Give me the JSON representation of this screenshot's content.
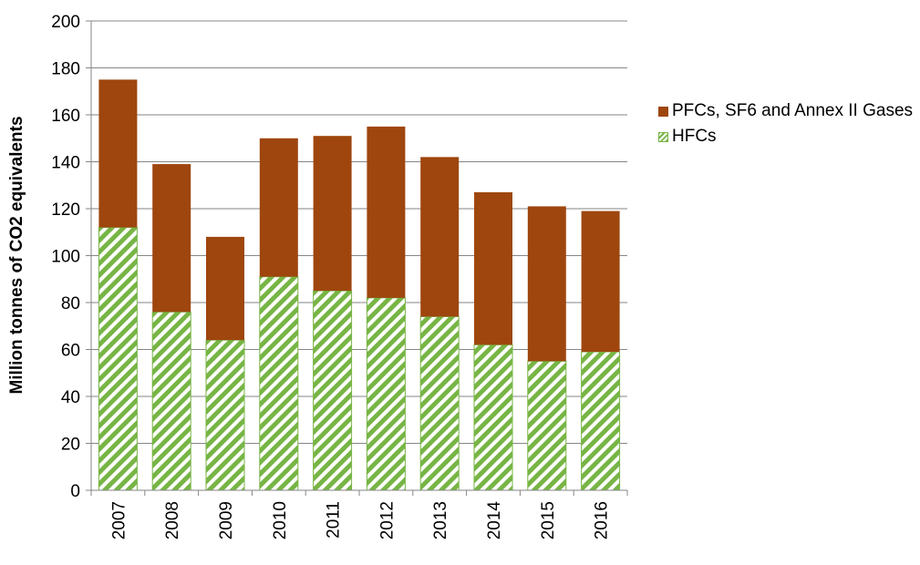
{
  "chart_data": {
    "type": "stacked_bar",
    "y_label": "Million tonnes of CO2 equivalents",
    "categories": [
      "2007",
      "2008",
      "2009",
      "2010",
      "2011",
      "2012",
      "2013",
      "2014",
      "2015",
      "2016"
    ],
    "series": [
      {
        "name": "HFCs",
        "color": "#77b545",
        "pattern": "hatch",
        "values": [
          112,
          76,
          64,
          91,
          85,
          82,
          74,
          62,
          55,
          59
        ]
      },
      {
        "name": "PFCs, SF6 and Annex II Gases",
        "color": "#9e460e",
        "values": [
          63,
          63,
          44,
          59,
          66,
          73,
          68,
          65,
          66,
          60
        ]
      }
    ],
    "ylim": [
      0,
      200
    ],
    "yticks": [
      0,
      20,
      40,
      60,
      80,
      100,
      120,
      140,
      160,
      180,
      200
    ],
    "grid": true,
    "legend": "right"
  }
}
